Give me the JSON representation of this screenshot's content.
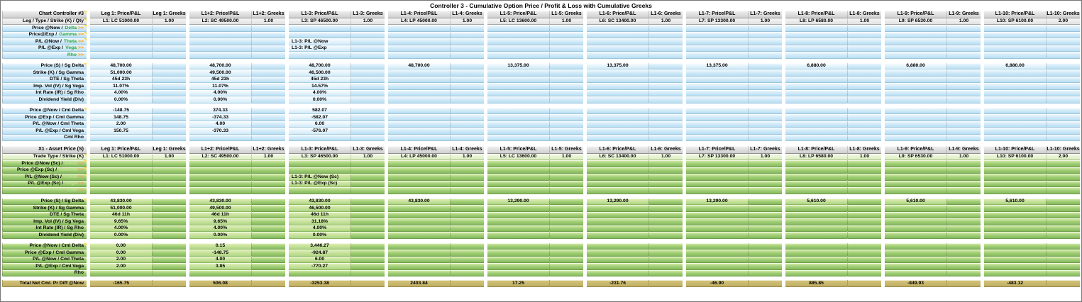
{
  "title": "Controller 3 - Cumulative Option Price / Profit & Loss with Cumulative Greeks",
  "colors": {
    "greek_link_green": "#2fa63c",
    "chevron_orange": "#ff9500",
    "greek_pale_green": "#bede93",
    "chevron_pale_orange": "#f0a55c",
    "note_yellow": "#ffd84d",
    "total_row_tan": "#c0af62",
    "total_row_tan_light": "#d4c57d",
    "blue_row": "#cfe9f8",
    "green_row": "#9fcd75"
  },
  "groups": [
    {
      "price_header": "Leg 1: Price/P&L",
      "greeks_header": "Leg 1: Greeks",
      "leg": "L1: LC 51000.00",
      "qty": "1.00"
    },
    {
      "price_header": "L1+2: Price/P&L",
      "greeks_header": "L1+2: Greeks",
      "leg": "L2: SC 49500.00",
      "qty": "1.00"
    },
    {
      "price_header": "L1-3: Price/P&L",
      "greeks_header": "L1-3: Greeks",
      "leg": "L3: SP 46500.00",
      "qty": "1.00"
    },
    {
      "price_header": "L1-4: Price/P&L",
      "greeks_header": "L1-4: Greeks",
      "leg": "L4: LP 45000.00",
      "qty": "1.00"
    },
    {
      "price_header": "L1-5: Price/P&L",
      "greeks_header": "L1-5: Greeks",
      "leg": "L5: LC 13600.00",
      "qty": "1.00"
    },
    {
      "price_header": "L1-6: Price/P&L",
      "greeks_header": "L1-6: Greeks",
      "leg": "L6: SC 13400.00",
      "qty": "1.00"
    },
    {
      "price_header": "L1-7: Price/P&L",
      "greeks_header": "L1-7: Greeks",
      "leg": "L7: SP 13300.00",
      "qty": "1.00"
    },
    {
      "price_header": "L1-8: Price/P&L",
      "greeks_header": "L1-8: Greeks",
      "leg": "L8: LP 6580.00",
      "qty": "1.00"
    },
    {
      "price_header": "L1-9: Price/P&L",
      "greeks_header": "L1-9: Greeks",
      "leg": "L9: SP 6530.00",
      "qty": "1.00"
    },
    {
      "price_header": "L1-10: Price/P&L",
      "greeks_header": "L1-10: Greeks",
      "leg": "L10: SP 6100.00",
      "qty": "2.00"
    }
  ],
  "sections": [
    {
      "palette": "b",
      "corner_header": "Chart Controller #3",
      "leg_row_label": "Leg / Type / Strike (K) / Qty",
      "greek_rows": [
        {
          "label": "Price @Now /",
          "greek": "Delta",
          "note": true
        },
        {
          "label": "Price@Exp /",
          "greek": "Gamma",
          "note": true
        },
        {
          "label": "P/L @Now /",
          "greek": "Theta",
          "note": true
        },
        {
          "label": "P/L @Exp /",
          "greek": "Vega",
          "note": false
        },
        {
          "label": "",
          "greek": "Rho",
          "note": false
        }
      ],
      "greek_cells": {
        "2": {
          "2": "L1-3: P/L @Now",
          "3": "L1-3: P/L @Exp"
        }
      },
      "param_rows": [
        {
          "label": "Price (S) / Sg Delta",
          "note": true,
          "values": [
            "48,700.00",
            "48,700.00",
            "48,700.00",
            "48,700.00",
            "13,375.00",
            "13,375.00",
            "13,375.00",
            "6,880.00",
            "6,880.00",
            "6,880.00"
          ]
        },
        {
          "label": "Strike (K) / Sg Gamma",
          "note": false,
          "values": [
            "51,000.00",
            "49,500.00",
            "46,500.00",
            "",
            "",
            "",
            "",
            "",
            "",
            ""
          ]
        },
        {
          "label": "DTE / Sg Theta",
          "note": false,
          "values": [
            "45d 23h",
            "45d 23h",
            "45d 23h",
            "",
            "",
            "",
            "",
            "",
            "",
            ""
          ]
        },
        {
          "label": "Imp. Vol (IV) / Sg Vega",
          "note": false,
          "values": [
            "11.07%",
            "11.07%",
            "14.57%",
            "",
            "",
            "",
            "",
            "",
            "",
            ""
          ]
        },
        {
          "label": "Int Rate (IR) / Sg Rho",
          "note": false,
          "values": [
            "4.00%",
            "4.00%",
            "4.00%",
            "",
            "",
            "",
            "",
            "",
            "",
            ""
          ]
        },
        {
          "label": "Dividend Yield (Div)",
          "note": false,
          "values": [
            "0.00%",
            "0.00%",
            "0.00%",
            "",
            "",
            "",
            "",
            "",
            "",
            ""
          ]
        }
      ],
      "cml_rows": [
        {
          "label": "Price @Now / Cml Delta",
          "note": true,
          "values": [
            "-148.75",
            "374.33",
            "582.07",
            "",
            "",
            "",
            "",
            "",
            "",
            ""
          ]
        },
        {
          "label": "Price @Exp / Cml Gamma",
          "note": false,
          "values": [
            "148.75",
            "-374.33",
            "-582.07",
            "",
            "",
            "",
            "",
            "",
            "",
            ""
          ]
        },
        {
          "label": "P/L @Now / Cml Theta",
          "note": false,
          "values": [
            "2.00",
            "4.00",
            "6.00",
            "",
            "",
            "",
            "",
            "",
            "",
            ""
          ]
        },
        {
          "label": "P/L @Exp / Cml Vega",
          "note": false,
          "values": [
            "150.75",
            "-370.33",
            "-576.07",
            "",
            "",
            "",
            "",
            "",
            "",
            ""
          ]
        },
        {
          "label": "Cml Rho",
          "note": false,
          "values": [
            "",
            "",
            "",
            "",
            "",
            "",
            "",
            "",
            "",
            ""
          ]
        }
      ]
    },
    {
      "palette": "g",
      "corner_header": "X1 - Asset Price (S)",
      "leg_row_label": "Trade Type / Strike (K)",
      "greek_rows": [
        {
          "label": "Price @Now (Sc) /",
          "greek": "Delta",
          "note": true
        },
        {
          "label": "Price @Exp (Sc) /",
          "greek": "Gamma",
          "note": true
        },
        {
          "label": "P/L @Now (Sc) /",
          "greek": "Theta",
          "note": true
        },
        {
          "label": "P/L @Exp (Sc) /",
          "greek": "Vega",
          "note": false
        },
        {
          "label": "",
          "greek": "Rho",
          "note": false
        }
      ],
      "greek_cells": {
        "2": {
          "2": "L1-3: P/L @Now (Sc)",
          "3": "L1-3: P/L @Exp (Sc)"
        }
      },
      "param_rows": [
        {
          "label": "Price (S) / Sg Delta",
          "note": true,
          "values": [
            "43,830.00",
            "43,830.00",
            "43,830.00",
            "43,830.00",
            "13,290.00",
            "13,290.00",
            "13,290.00",
            "5,610.00",
            "5,610.00",
            "5,610.00"
          ]
        },
        {
          "label": "Strike (K) / Sg Gamma",
          "note": false,
          "values": [
            "51,000.00",
            "49,500.00",
            "46,500.00",
            "",
            "",
            "",
            "",
            "",
            "",
            ""
          ]
        },
        {
          "label": "DTE / Sg Theta",
          "note": false,
          "values": [
            "46d 11h",
            "46d 11h",
            "46d 11h",
            "",
            "",
            "",
            "",
            "",
            "",
            ""
          ]
        },
        {
          "label": "Imp. Vol (IV) / Sg Vega",
          "note": false,
          "values": [
            "9.65%",
            "9.65%",
            "31.18%",
            "",
            "",
            "",
            "",
            "",
            "",
            ""
          ]
        },
        {
          "label": "Int Rate (IR) / Sg Rho",
          "note": false,
          "values": [
            "4.00%",
            "4.00%",
            "4.00%",
            "",
            "",
            "",
            "",
            "",
            "",
            ""
          ]
        },
        {
          "label": "Dividend Yield (Div)",
          "note": false,
          "values": [
            "0.00%",
            "0.00%",
            "0.00%",
            "",
            "",
            "",
            "",
            "",
            "",
            ""
          ]
        }
      ],
      "cml_rows": [
        {
          "label": "Price @Now / Cml Delta",
          "note": true,
          "values": [
            "0.00",
            "0.15",
            "3,446.27",
            "",
            "",
            "",
            "",
            "",
            "",
            ""
          ]
        },
        {
          "label": "Price @Exp / Cml Gamma",
          "note": false,
          "values": [
            "0.00",
            "-148.75",
            "-924.87",
            "",
            "",
            "",
            "",
            "",
            "",
            ""
          ]
        },
        {
          "label": "P/L @Now / Cml Theta",
          "note": false,
          "values": [
            "2.00",
            "4.00",
            "6.00",
            "",
            "",
            "",
            "",
            "",
            "",
            ""
          ]
        },
        {
          "label": "P/L @Exp / Cml Vega",
          "note": false,
          "values": [
            "2.00",
            "3.85",
            "-770.27",
            "",
            "",
            "",
            "",
            "",
            "",
            ""
          ]
        },
        {
          "label": "Rho",
          "note": false,
          "values": [
            "",
            "",
            "",
            "",
            "",
            "",
            "",
            "",
            "",
            ""
          ]
        }
      ]
    }
  ],
  "total_row": {
    "label": "Total Net Cml. Pr Diff @Now",
    "values": [
      "-165.75",
      "506.08",
      "-3253.38",
      "2403.84",
      "17.25",
      "-231.76",
      "-46.90",
      "885.85",
      "-849.93",
      "-483.12"
    ]
  }
}
